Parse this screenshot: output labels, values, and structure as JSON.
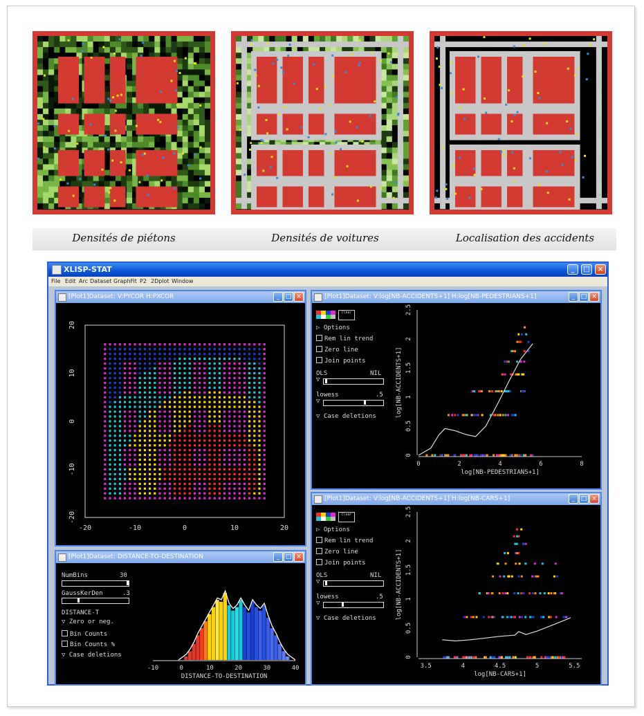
{
  "maps": [
    {
      "caption": "Densités de piétons",
      "palette": [
        "#0a1a06",
        "#1d3a10",
        "#2f5a1a",
        "#4c8a2a",
        "#76b546",
        "#a7d86b",
        "#000000"
      ],
      "road": "#000000",
      "border": "#d33a32"
    },
    {
      "caption": "Densités de voitures",
      "palette": [
        "#1d3a10",
        "#3f7a22",
        "#5fa334",
        "#86c052",
        "#a9d77a",
        "#c9e6a0",
        "#000000"
      ],
      "road": "#c8c8c8",
      "border": "#d33a32"
    },
    {
      "caption": "Localisation des accidents",
      "palette": [
        "#000000",
        "#000000",
        "#050f03",
        "#0a1a06",
        "#000000"
      ],
      "road": "#c8c8c8",
      "border": "#d33a32"
    }
  ],
  "window": {
    "title": "XLISP-STAT",
    "menu": [
      "File",
      "Edit",
      "Arc",
      "Dataset",
      "GraphFit",
      "P2",
      "2Dplot",
      "Window"
    ],
    "plot1": {
      "title": "[Plot1]Dataset: V:PYCOR H:PXCOR",
      "x_ticks": [
        "-20",
        "-10",
        "0",
        "10",
        "20"
      ],
      "y_ticks": [
        "20",
        "10",
        "0",
        "-10",
        "-20"
      ]
    },
    "hist": {
      "title": "[Plot1]Dataset: DISTANCE-TO-DESTINATION",
      "controls": {
        "numbins_label": "NumBins",
        "numbins_value": "30",
        "gauss_label": "GaussKerDen",
        "gauss_value": ".3",
        "var_label": "DISTANCE-T",
        "zero": "Zero or neg.",
        "bin_counts": "Bin Counts",
        "bin_counts_pct": "Bin Counts %",
        "case_deletions": "Case deletions"
      },
      "x_ticks": [
        "-10",
        "0",
        "10",
        "20",
        "30",
        "40"
      ],
      "xlabel": "DISTANCE-TO-DESTINATION"
    },
    "scatter1": {
      "title": "[Plot1]Dataset: V:log[NB-ACCIDENTS+1] H:log[NB-PEDESTRIANS+1]",
      "ols": "OLS",
      "nil": "NIL",
      "lowess": "lowess",
      "lowess_value": ".5",
      "xlabel": "log[NB-PEDESTRIANS+1]",
      "ylabel": "log[NB-ACCIDENTS+1]",
      "x_ticks": [
        "0",
        "2",
        "4",
        "6",
        "8"
      ],
      "y_ticks": [
        "2.5",
        "2",
        "1.5",
        "1",
        "0.5",
        "0"
      ]
    },
    "scatter2": {
      "title": "[Plot1]Dataset: V:log[NB-ACCIDENTS+1] H:log[NB-CARS+1]",
      "ols": "OLS",
      "nil": "NIL",
      "lowess": "lowess",
      "lowess_value": ".5",
      "xlabel": "log[NB-CARS+1]",
      "ylabel": "log[NB-ACCIDENTS+1]",
      "x_ticks": [
        "3.5",
        "4",
        "4.5",
        "5",
        "5.5"
      ],
      "y_ticks": [
        "2.5",
        "2",
        "1.5",
        "1",
        "0.5",
        "0"
      ]
    },
    "side_controls": {
      "options": "Options",
      "rem_lin_trend": "Rem lin trend",
      "zero_line": "Zero line",
      "join_points": "Join points",
      "case_deletions": "Case deletions",
      "clear": "Clear"
    }
  },
  "colors": {
    "street": "#d33a32",
    "point_palette": [
      "#ff2a2a",
      "#ffd400",
      "#19c9d9",
      "#1b3fd0",
      "#e02ad6",
      "#c0c0c0"
    ]
  }
}
